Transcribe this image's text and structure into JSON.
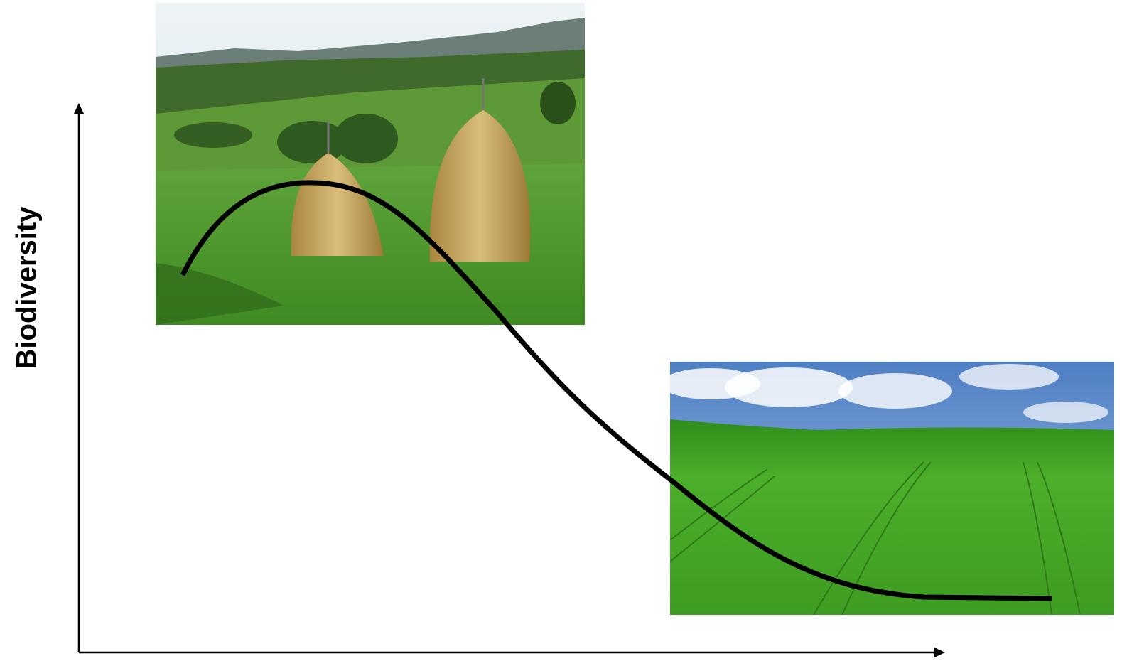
{
  "axis": {
    "y_label": "Biodiversity"
  }
}
